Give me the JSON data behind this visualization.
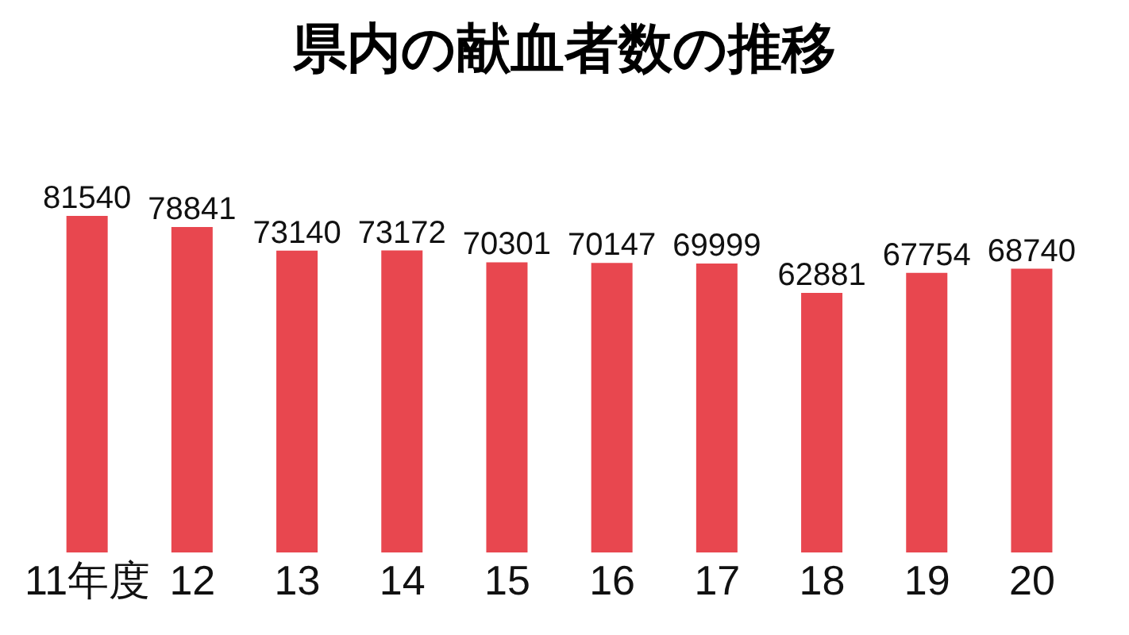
{
  "chart_data": {
    "type": "bar",
    "title": "県内の献血者数の推移",
    "categories": [
      "11年度",
      "12",
      "13",
      "14",
      "15",
      "16",
      "17",
      "18",
      "19",
      "20"
    ],
    "values": [
      81540,
      78841,
      73140,
      73172,
      70301,
      70147,
      69999,
      62881,
      67754,
      68740
    ],
    "color": "#e8474f",
    "data_labels": true
  }
}
